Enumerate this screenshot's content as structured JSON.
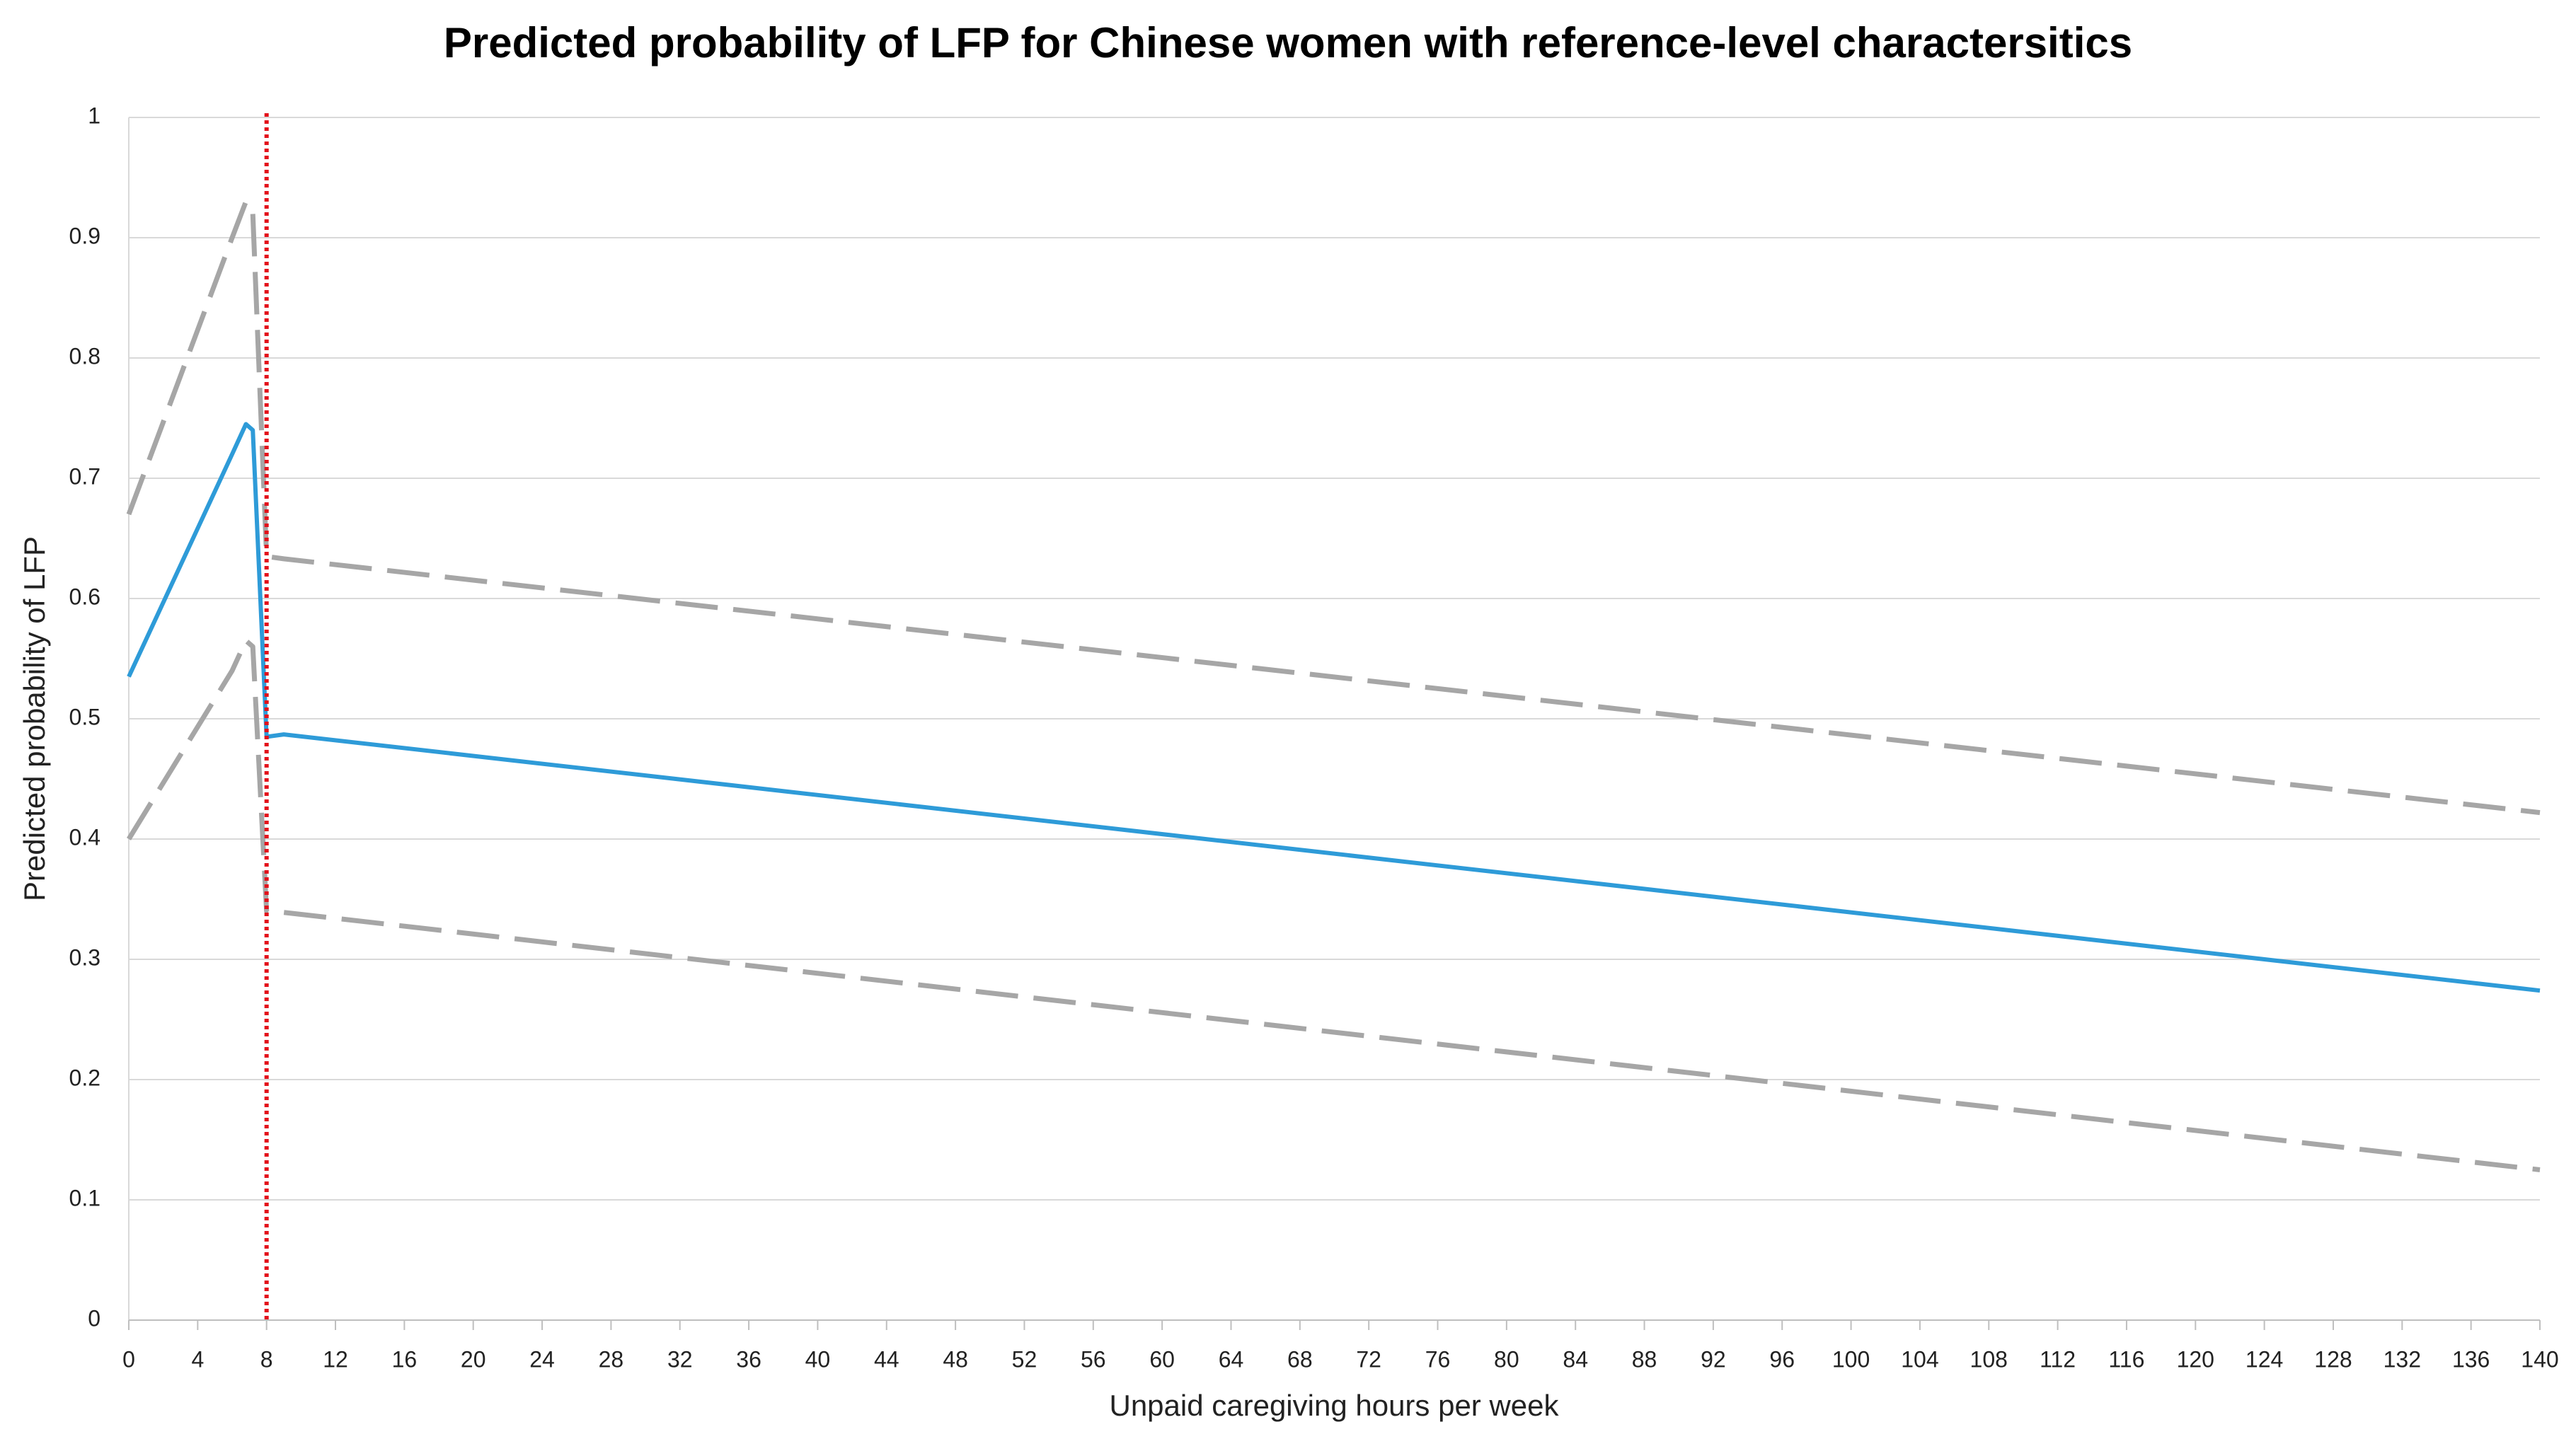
{
  "chart_data": {
    "type": "line",
    "title": "Predicted probability of LFP for Chinese women with reference-level charactersitics",
    "x_label": "Unpaid caregiving hours per week",
    "y_label": "Predicted probability of LFP",
    "x": [
      0,
      6,
      6.8,
      7.2,
      8,
      9,
      140
    ],
    "series": [
      {
        "color": "#2e9bd8",
        "dash": false,
        "values": [
          0.535,
          0.72,
          0.745,
          0.74,
          0.485,
          0.487,
          0.274
        ]
      },
      {
        "color": "#a6a6a6",
        "dash": true,
        "values": [
          0.67,
          0.9,
          0.93,
          0.92,
          0.635,
          0.633,
          0.422
        ]
      },
      {
        "color": "#a6a6a6",
        "dash": true,
        "values": [
          0.4,
          0.54,
          0.565,
          0.56,
          0.34,
          0.339,
          0.125
        ]
      }
    ],
    "vline": {
      "x": 8,
      "color": "#e3101a"
    },
    "xlim": [
      0,
      140
    ],
    "xticks": [
      0,
      4,
      8,
      12,
      16,
      20,
      24,
      28,
      32,
      36,
      40,
      44,
      48,
      52,
      56,
      60,
      64,
      68,
      72,
      76,
      80,
      84,
      88,
      92,
      96,
      100,
      104,
      108,
      112,
      116,
      120,
      124,
      128,
      132,
      136,
      140
    ],
    "ylim": [
      0,
      1
    ],
    "yticks": [
      0,
      0.1,
      0.2,
      0.3,
      0.4,
      0.5,
      0.6,
      0.7,
      0.8,
      0.9,
      1
    ],
    "grid": true
  }
}
